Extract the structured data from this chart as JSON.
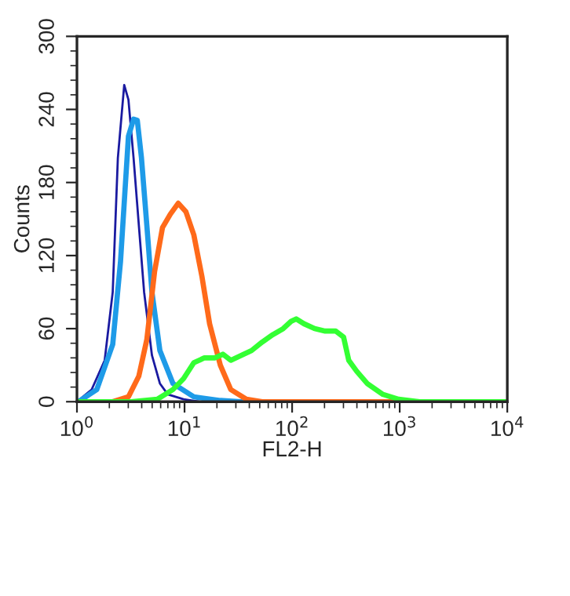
{
  "chart_data": {
    "type": "line",
    "xlabel": "FL2-H",
    "ylabel": "Counts",
    "log": "x",
    "xlim": [
      1,
      10000
    ],
    "ylim": [
      0,
      300
    ],
    "xticks": [
      {
        "value": 1,
        "label": "10$^{0}$"
      },
      {
        "value": 10,
        "label": "10$^{1}$"
      },
      {
        "value": 100,
        "label": "10$^{2}$"
      },
      {
        "value": 1000,
        "label": "10$^{3}$"
      },
      {
        "value": 10000,
        "label": "10$^{4}$"
      }
    ],
    "yticks": [
      0,
      60,
      120,
      180,
      240,
      300
    ],
    "grid": false,
    "legend": false,
    "marker": "none",
    "line_style": "solid",
    "series": [
      {
        "color": "#1a1aa0",
        "x": [
          1.0,
          1.37,
          1.81,
          2.15,
          2.4,
          2.75,
          3.01,
          3.36,
          3.76,
          4.21,
          4.98,
          5.9,
          6.98,
          9.8,
          13.7
        ],
        "values": [
          0,
          10,
          34,
          90,
          200,
          260,
          248,
          200,
          145,
          90,
          38,
          15,
          6,
          2,
          0
        ]
      },
      {
        "color": "#1e9be8",
        "x": [
          1.03,
          1.53,
          2.15,
          2.54,
          3.01,
          3.36,
          3.64,
          3.98,
          4.46,
          4.98,
          5.9,
          7.8,
          12.2,
          21.5,
          33.6
        ],
        "values": [
          0,
          10,
          47,
          115,
          218,
          232,
          231,
          200,
          145,
          90,
          42,
          15,
          4,
          1,
          0
        ]
      },
      {
        "color": "#ff6a1a",
        "x": [
          2.15,
          3.01,
          3.76,
          4.46,
          5.27,
          6.24,
          7.38,
          8.74,
          10.3,
          12.2,
          14.5,
          17.1,
          21.5,
          26.9,
          37.6,
          52.7,
          162,
          1090
        ],
        "values": [
          0,
          4,
          21,
          51,
          107,
          143,
          154,
          163,
          156,
          137,
          103,
          64,
          30,
          10,
          2,
          0,
          0,
          0
        ]
      },
      {
        "color": "#33ff33",
        "x": [
          1.03,
          3.18,
          5.58,
          7.8,
          9.8,
          12.2,
          15.3,
          19.2,
          22.7,
          26.9,
          33.6,
          42,
          52.7,
          66,
          82.6,
          97.8,
          109,
          129,
          162,
          203,
          254,
          301,
          336,
          398,
          498,
          698,
          977,
          1530,
          2690,
          10000
        ],
        "values": [
          0,
          0,
          2,
          10,
          19,
          32,
          36,
          36,
          39,
          34,
          38,
          42,
          49,
          55,
          60,
          66,
          68,
          64,
          60,
          58,
          58,
          53,
          34,
          25,
          15,
          6,
          2,
          0,
          0,
          0
        ]
      }
    ]
  }
}
